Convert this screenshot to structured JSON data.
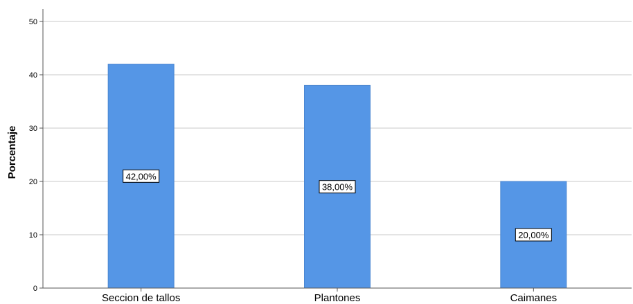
{
  "chart_data": {
    "type": "bar",
    "categories": [
      "Seccion de tallos",
      "Plantones",
      "Caimanes"
    ],
    "values": [
      42,
      38,
      20
    ],
    "data_labels": [
      "42,00%",
      "38,00%",
      "20,00%"
    ],
    "title": "",
    "xlabel": "",
    "ylabel": "Porcentaje",
    "ylim": [
      0,
      50
    ],
    "yticks": [
      "0",
      "10",
      "20",
      "30",
      "40",
      "50"
    ],
    "grid": true,
    "legend": "none",
    "bar_color": "#5596e6",
    "bar_edge_color": "#4a86d1",
    "grid_color": "#c8c8c8",
    "axis_color": "#555555"
  }
}
